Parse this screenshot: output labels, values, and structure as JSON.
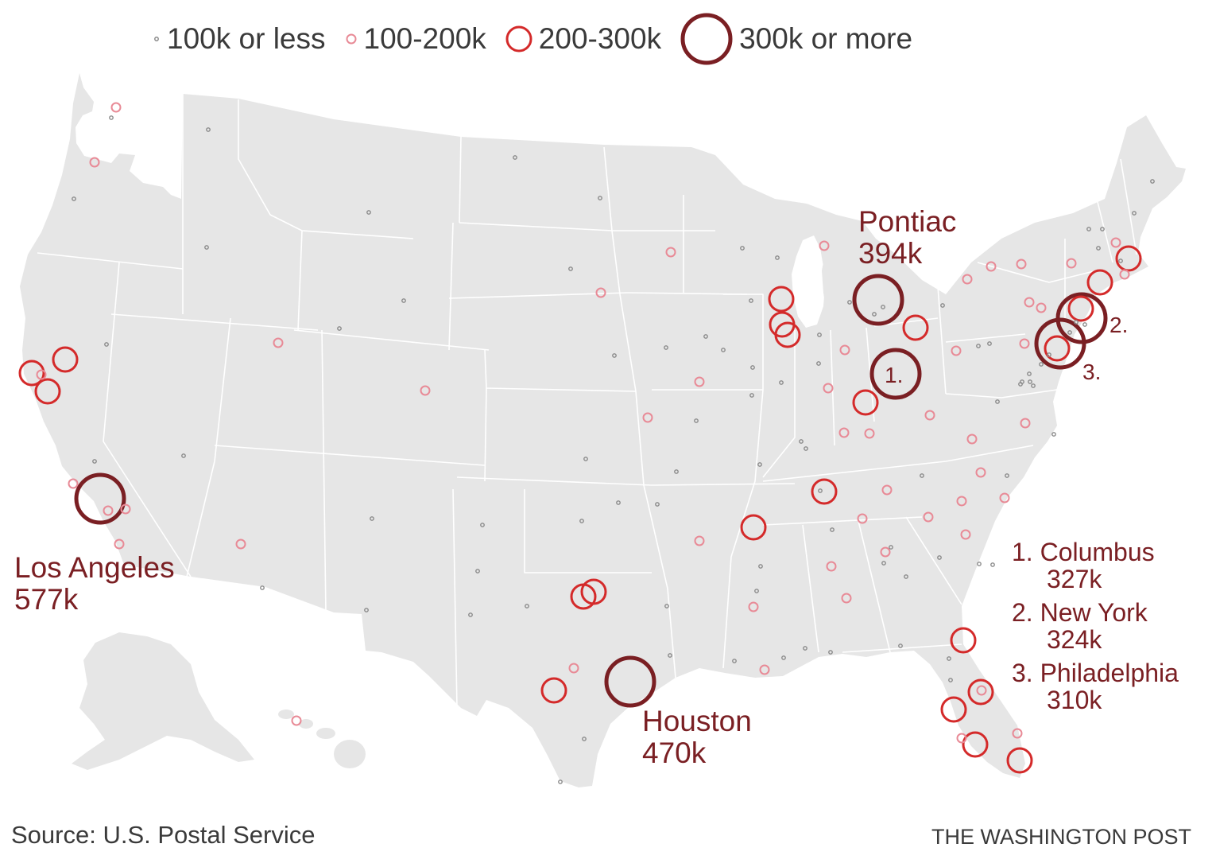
{
  "legend": {
    "items": [
      {
        "key": "tiny",
        "label": "100k or less"
      },
      {
        "key": "small",
        "label": "100-200k"
      },
      {
        "key": "medium",
        "label": "200-300k"
      },
      {
        "key": "large",
        "label": "300k or more"
      }
    ]
  },
  "colors": {
    "land": "#e6e6e6",
    "tiny": "#8a8a8a",
    "small": "#e88a96",
    "medium": "#d42a2a",
    "large": "#7a1f23",
    "label": "#7a1f23"
  },
  "labels": {
    "pontiac": {
      "name": "Pontiac",
      "value": "394k"
    },
    "los_angeles": {
      "name": "Los Angeles",
      "value": "577k"
    },
    "houston": {
      "name": "Houston",
      "value": "470k"
    }
  },
  "rank_markers": [
    "1.",
    "2.",
    "3."
  ],
  "ranking": [
    {
      "city": "1. Columbus",
      "value": "327k"
    },
    {
      "city": "2. New York",
      "value": "324k"
    },
    {
      "city": "3. Philadelphia",
      "value": "310k"
    }
  ],
  "footer": {
    "source": "Source: U.S. Postal Service",
    "credit": "THE WASHINGTON POST"
  }
}
